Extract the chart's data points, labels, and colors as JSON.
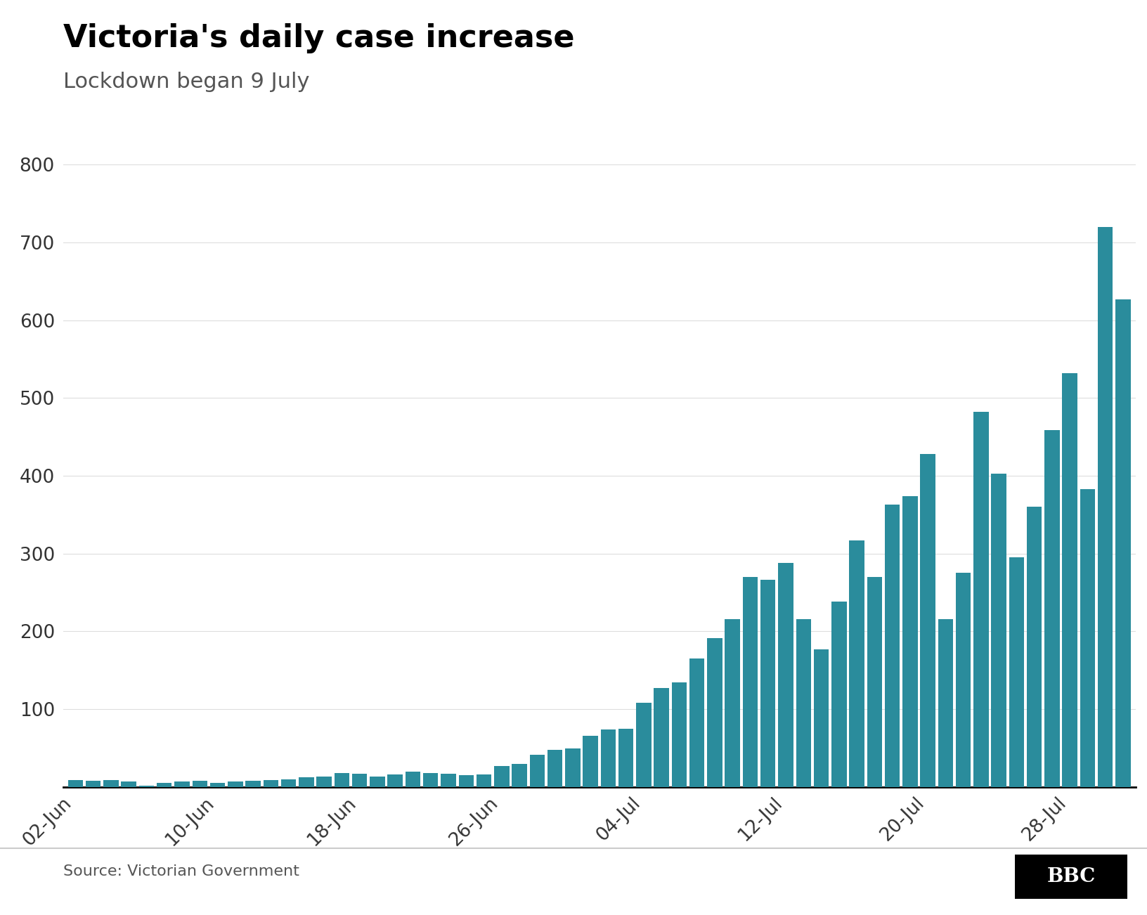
{
  "title": "Victoria's daily case increase",
  "subtitle": "Lockdown began 9 July",
  "source": "Source: Victorian Government",
  "bar_color": "#2a8c9c",
  "background_color": "#ffffff",
  "ylim": [
    0,
    800
  ],
  "yticks": [
    100,
    200,
    300,
    400,
    500,
    600,
    700,
    800
  ],
  "values": [
    9,
    8,
    9,
    7,
    2,
    5,
    7,
    8,
    5,
    7,
    8,
    9,
    10,
    12,
    13,
    18,
    17,
    13,
    16,
    20,
    18,
    17,
    15,
    16,
    27,
    30,
    41,
    48,
    49,
    66,
    74,
    75,
    108,
    127,
    134,
    165,
    191,
    216,
    270,
    266,
    288,
    216,
    177,
    238,
    317,
    270,
    363,
    374,
    428,
    216,
    275,
    482,
    403,
    295,
    360,
    459,
    532,
    383,
    720,
    627
  ],
  "xtick_labels": [
    "02-Jun",
    "10-Jun",
    "18-Jun",
    "26-Jun",
    "04-Jul",
    "12-Jul",
    "20-Jul",
    "28-Jul"
  ],
  "xtick_positions": [
    0,
    8,
    16,
    24,
    32,
    40,
    48,
    56
  ],
  "title_fontsize": 32,
  "subtitle_fontsize": 22,
  "tick_fontsize": 19,
  "source_fontsize": 16
}
